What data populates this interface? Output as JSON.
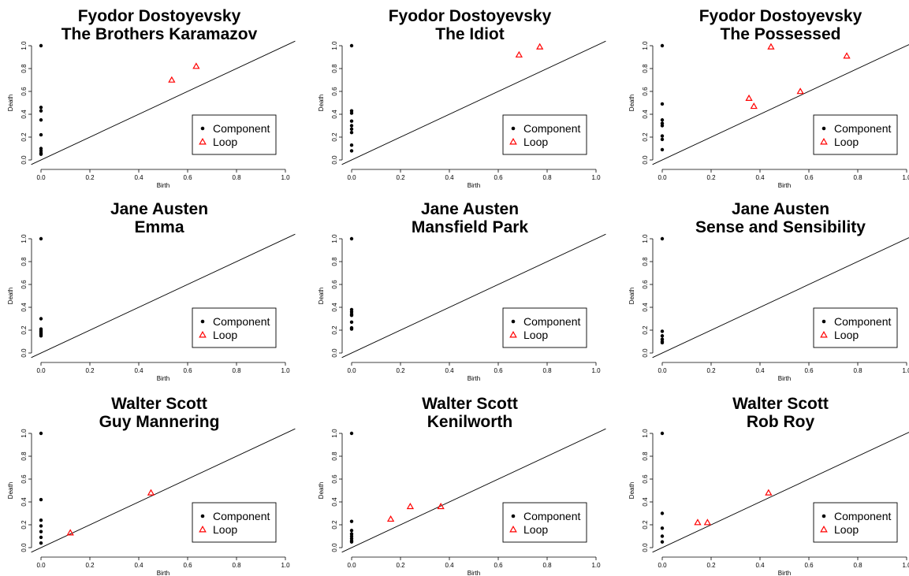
{
  "legend": {
    "component_label": "Component",
    "loop_label": "Loop"
  },
  "chart_data": [
    {
      "type": "scatter",
      "title": "Fyodor Dostoyevsky",
      "subtitle": "The Brothers Karamazov",
      "xlabel": "Birth",
      "ylabel": "Death",
      "xlim": [
        0,
        1
      ],
      "ylim": [
        0,
        1
      ],
      "diagonal": true,
      "legend_position": "bottom-right",
      "xticks": [
        "0.0",
        "0.2",
        "0.4",
        "0.6",
        "0.8",
        "1.0"
      ],
      "yticks": [
        "0.0",
        "0.2",
        "0.4",
        "0.6",
        "0.8",
        "1.0"
      ],
      "series": [
        {
          "name": "Component",
          "marker": "filled-circle",
          "color": "#000000",
          "points": [
            [
              0,
              1.0
            ],
            [
              0,
              0.46
            ],
            [
              0,
              0.43
            ],
            [
              0,
              0.35
            ],
            [
              0,
              0.22
            ],
            [
              0,
              0.1
            ],
            [
              0,
              0.08
            ],
            [
              0,
              0.06
            ],
            [
              0,
              0.05
            ]
          ]
        },
        {
          "name": "Loop",
          "marker": "open-triangle",
          "color": "#ff0000",
          "points": [
            [
              0.535,
              0.7
            ],
            [
              0.635,
              0.82
            ]
          ]
        }
      ]
    },
    {
      "type": "scatter",
      "title": "Fyodor Dostoyevsky",
      "subtitle": "The Idiot",
      "xlabel": "Birth",
      "ylabel": "Death",
      "xlim": [
        0,
        1
      ],
      "ylim": [
        0,
        1
      ],
      "diagonal": true,
      "legend_position": "bottom-right",
      "xticks": [
        "0.0",
        "0.2",
        "0.4",
        "0.6",
        "0.8",
        "1.0"
      ],
      "yticks": [
        "0.0",
        "0.2",
        "0.4",
        "0.6",
        "0.8",
        "1.0"
      ],
      "series": [
        {
          "name": "Component",
          "marker": "filled-circle",
          "color": "#000000",
          "points": [
            [
              0,
              1.0
            ],
            [
              0,
              0.43
            ],
            [
              0,
              0.41
            ],
            [
              0,
              0.34
            ],
            [
              0,
              0.3
            ],
            [
              0,
              0.27
            ],
            [
              0,
              0.24
            ],
            [
              0,
              0.13
            ],
            [
              0,
              0.08
            ]
          ]
        },
        {
          "name": "Loop",
          "marker": "open-triangle",
          "color": "#ff0000",
          "points": [
            [
              0.685,
              0.92
            ],
            [
              0.77,
              0.99
            ]
          ]
        }
      ]
    },
    {
      "type": "scatter",
      "title": "Fyodor Dostoyevsky",
      "subtitle": "The Possessed",
      "xlabel": "Birth",
      "ylabel": "Death",
      "xlim": [
        0,
        1
      ],
      "ylim": [
        0,
        1
      ],
      "diagonal": true,
      "legend_position": "bottom-right",
      "xticks": [
        "0.0",
        "0.2",
        "0.4",
        "0.6",
        "0.8",
        "1.0"
      ],
      "yticks": [
        "0.0",
        "0.2",
        "0.4",
        "0.6",
        "0.8",
        "1.0"
      ],
      "series": [
        {
          "name": "Component",
          "marker": "filled-circle",
          "color": "#000000",
          "points": [
            [
              0,
              1.0
            ],
            [
              0,
              0.49
            ],
            [
              0,
              0.35
            ],
            [
              0,
              0.32
            ],
            [
              0,
              0.3
            ],
            [
              0,
              0.21
            ],
            [
              0,
              0.18
            ],
            [
              0,
              0.09
            ]
          ]
        },
        {
          "name": "Loop",
          "marker": "open-triangle",
          "color": "#ff0000",
          "points": [
            [
              0.445,
              0.99
            ],
            [
              0.355,
              0.54
            ],
            [
              0.375,
              0.47
            ],
            [
              0.565,
              0.6
            ],
            [
              0.755,
              0.91
            ]
          ]
        }
      ]
    },
    {
      "type": "scatter",
      "title": "Jane Austen",
      "subtitle": "Emma",
      "xlabel": "Birth",
      "ylabel": "Death",
      "xlim": [
        0,
        1
      ],
      "ylim": [
        0,
        1
      ],
      "diagonal": true,
      "legend_position": "bottom-right",
      "xticks": [
        "0.0",
        "0.2",
        "0.4",
        "0.6",
        "0.8",
        "1.0"
      ],
      "yticks": [
        "0.0",
        "0.2",
        "0.4",
        "0.6",
        "0.8",
        "1.0"
      ],
      "series": [
        {
          "name": "Component",
          "marker": "filled-circle",
          "color": "#000000",
          "points": [
            [
              0,
              1.0
            ],
            [
              0,
              0.3
            ],
            [
              0,
              0.21
            ],
            [
              0,
              0.2
            ],
            [
              0,
              0.19
            ],
            [
              0,
              0.18
            ],
            [
              0,
              0.17
            ],
            [
              0,
              0.16
            ],
            [
              0,
              0.15
            ]
          ]
        },
        {
          "name": "Loop",
          "marker": "open-triangle",
          "color": "#ff0000",
          "points": []
        }
      ]
    },
    {
      "type": "scatter",
      "title": "Jane Austen",
      "subtitle": "Mansfield Park",
      "xlabel": "Birth",
      "ylabel": "Death",
      "xlim": [
        0,
        1
      ],
      "ylim": [
        0,
        1
      ],
      "diagonal": true,
      "legend_position": "bottom-right",
      "xticks": [
        "0.0",
        "0.2",
        "0.4",
        "0.6",
        "0.8",
        "1.0"
      ],
      "yticks": [
        "0.0",
        "0.2",
        "0.4",
        "0.6",
        "0.8",
        "1.0"
      ],
      "series": [
        {
          "name": "Component",
          "marker": "filled-circle",
          "color": "#000000",
          "points": [
            [
              0,
              1.0
            ],
            [
              0,
              0.38
            ],
            [
              0,
              0.36
            ],
            [
              0,
              0.34
            ],
            [
              0,
              0.33
            ],
            [
              0,
              0.27
            ],
            [
              0,
              0.22
            ],
            [
              0,
              0.21
            ]
          ]
        },
        {
          "name": "Loop",
          "marker": "open-triangle",
          "color": "#ff0000",
          "points": []
        }
      ]
    },
    {
      "type": "scatter",
      "title": "Jane Austen",
      "subtitle": "Sense and Sensibility",
      "xlabel": "Birth",
      "ylabel": "Death",
      "xlim": [
        0,
        1
      ],
      "ylim": [
        0,
        1
      ],
      "diagonal": true,
      "legend_position": "bottom-right",
      "xticks": [
        "0.0",
        "0.2",
        "0.4",
        "0.6",
        "0.8",
        "1.0"
      ],
      "yticks": [
        "0.0",
        "0.2",
        "0.4",
        "0.6",
        "0.8",
        "1.0"
      ],
      "series": [
        {
          "name": "Component",
          "marker": "filled-circle",
          "color": "#000000",
          "points": [
            [
              0,
              1.0
            ],
            [
              0,
              0.19
            ],
            [
              0,
              0.15
            ],
            [
              0,
              0.12
            ],
            [
              0,
              0.1
            ],
            [
              0,
              0.09
            ]
          ]
        },
        {
          "name": "Loop",
          "marker": "open-triangle",
          "color": "#ff0000",
          "points": []
        }
      ]
    },
    {
      "type": "scatter",
      "title": "Walter Scott",
      "subtitle": "Guy Mannering",
      "xlabel": "Birth",
      "ylabel": "Death",
      "xlim": [
        0,
        1
      ],
      "ylim": [
        0,
        1
      ],
      "diagonal": true,
      "legend_position": "bottom-right",
      "xticks": [
        "0.0",
        "0.2",
        "0.4",
        "0.6",
        "0.8",
        "1.0"
      ],
      "yticks": [
        "0.0",
        "0.2",
        "0.4",
        "0.6",
        "0.8",
        "1.0"
      ],
      "series": [
        {
          "name": "Component",
          "marker": "filled-circle",
          "color": "#000000",
          "points": [
            [
              0,
              1.0
            ],
            [
              0,
              0.42
            ],
            [
              0,
              0.24
            ],
            [
              0,
              0.19
            ],
            [
              0,
              0.14
            ],
            [
              0,
              0.09
            ],
            [
              0,
              0.04
            ]
          ]
        },
        {
          "name": "Loop",
          "marker": "open-triangle",
          "color": "#ff0000",
          "points": [
            [
              0.12,
              0.13
            ],
            [
              0.45,
              0.48
            ]
          ]
        }
      ]
    },
    {
      "type": "scatter",
      "title": "Walter Scott",
      "subtitle": "Kenilworth",
      "xlabel": "Birth",
      "ylabel": "Death",
      "xlim": [
        0,
        1
      ],
      "ylim": [
        0,
        1
      ],
      "diagonal": true,
      "legend_position": "bottom-right",
      "xticks": [
        "0.0",
        "0.2",
        "0.4",
        "0.6",
        "0.8",
        "1.0"
      ],
      "yticks": [
        "0.0",
        "0.2",
        "0.4",
        "0.6",
        "0.8",
        "1.0"
      ],
      "series": [
        {
          "name": "Component",
          "marker": "filled-circle",
          "color": "#000000",
          "points": [
            [
              0,
              1.0
            ],
            [
              0,
              0.23
            ],
            [
              0,
              0.15
            ],
            [
              0,
              0.12
            ],
            [
              0,
              0.1
            ],
            [
              0,
              0.08
            ],
            [
              0,
              0.06
            ],
            [
              0,
              0.05
            ]
          ]
        },
        {
          "name": "Loop",
          "marker": "open-triangle",
          "color": "#ff0000",
          "points": [
            [
              0.16,
              0.25
            ],
            [
              0.24,
              0.36
            ],
            [
              0.365,
              0.36
            ]
          ]
        }
      ]
    },
    {
      "type": "scatter",
      "title": "Walter Scott",
      "subtitle": "Rob Roy",
      "xlabel": "Birth",
      "ylabel": "Death",
      "xlim": [
        0,
        1
      ],
      "ylim": [
        0,
        1
      ],
      "diagonal": true,
      "legend_position": "bottom-right",
      "xticks": [
        "0.0",
        "0.2",
        "0.4",
        "0.6",
        "0.8",
        "1.0"
      ],
      "yticks": [
        "0.0",
        "0.2",
        "0.4",
        "0.6",
        "0.8",
        "1.0"
      ],
      "series": [
        {
          "name": "Component",
          "marker": "filled-circle",
          "color": "#000000",
          "points": [
            [
              0,
              1.0
            ],
            [
              0,
              0.3
            ],
            [
              0,
              0.17
            ],
            [
              0,
              0.1
            ],
            [
              0,
              0.05
            ]
          ]
        },
        {
          "name": "Loop",
          "marker": "open-triangle",
          "color": "#ff0000",
          "points": [
            [
              0.145,
              0.22
            ],
            [
              0.185,
              0.22
            ],
            [
              0.435,
              0.48
            ]
          ]
        }
      ]
    }
  ]
}
